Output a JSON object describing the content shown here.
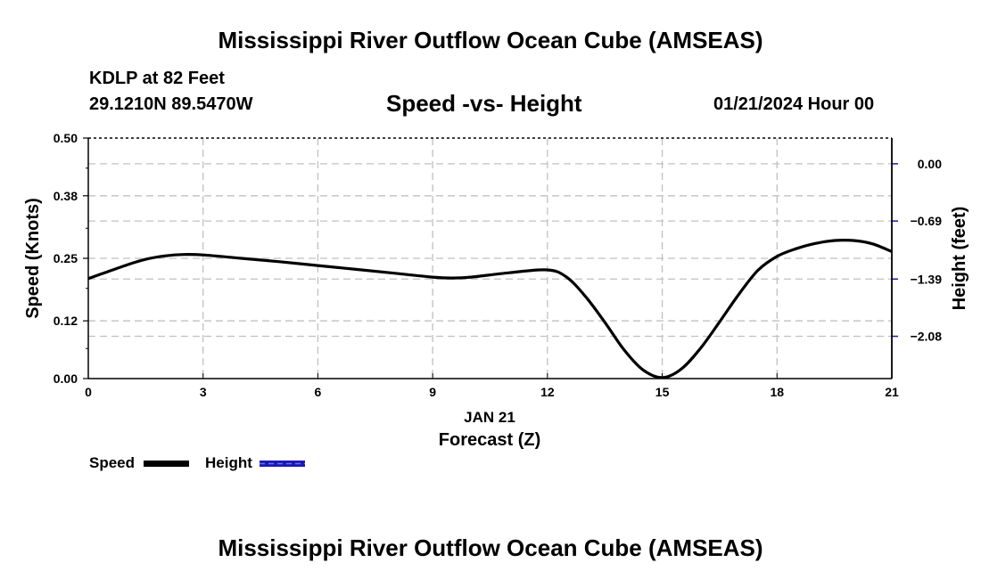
{
  "title": "Mississippi River Outflow Ocean Cube (AMSEAS)",
  "footer_title": "Mississippi River Outflow Ocean Cube (AMSEAS)",
  "station": {
    "name": "KDLP at 82 Feet",
    "coords": "29.1210N  89.5470W"
  },
  "date_label": "01/21/2024 Hour 00",
  "chart_data": {
    "type": "line",
    "title": "Speed -vs- Height",
    "xlabel": "Forecast (Z)",
    "xsublabel": "JAN 21",
    "ylabel": "Speed (Knots)",
    "y2label": "Height (feet)",
    "xlim": [
      0,
      21
    ],
    "ylim": [
      0,
      0.5
    ],
    "y2lim": [
      0.31,
      -2.59
    ],
    "x_ticks": [
      "0",
      "3",
      "6",
      "9",
      "12",
      "15",
      "18",
      "21"
    ],
    "y_ticks": [
      "0.00",
      "0.12",
      "0.25",
      "0.38",
      "0.50"
    ],
    "y2_ticks": [
      "0.00",
      "-0.69",
      "-1.39",
      "-2.08"
    ],
    "grid": true,
    "series": [
      {
        "name": "Speed",
        "color": "#000000",
        "x": [
          0,
          0.5,
          1,
          1.5,
          2,
          2.5,
          3,
          4,
          5,
          6,
          7,
          8,
          9,
          9.5,
          10,
          11,
          12,
          12.5,
          13,
          13.5,
          14,
          14.5,
          15,
          15.5,
          16,
          16.5,
          17,
          17.5,
          18,
          18.5,
          19,
          19.5,
          20,
          20.5,
          21
        ],
        "values": [
          0.208,
          0.222,
          0.236,
          0.248,
          0.255,
          0.258,
          0.257,
          0.25,
          0.243,
          0.235,
          0.227,
          0.219,
          0.211,
          0.209,
          0.211,
          0.22,
          0.226,
          0.211,
          0.17,
          0.117,
          0.06,
          0.018,
          0.002,
          0.02,
          0.063,
          0.118,
          0.175,
          0.225,
          0.254,
          0.27,
          0.281,
          0.287,
          0.287,
          0.28,
          0.264
        ]
      },
      {
        "name": "Height",
        "color": "#1a1ab4",
        "x": [],
        "values": []
      }
    ]
  }
}
